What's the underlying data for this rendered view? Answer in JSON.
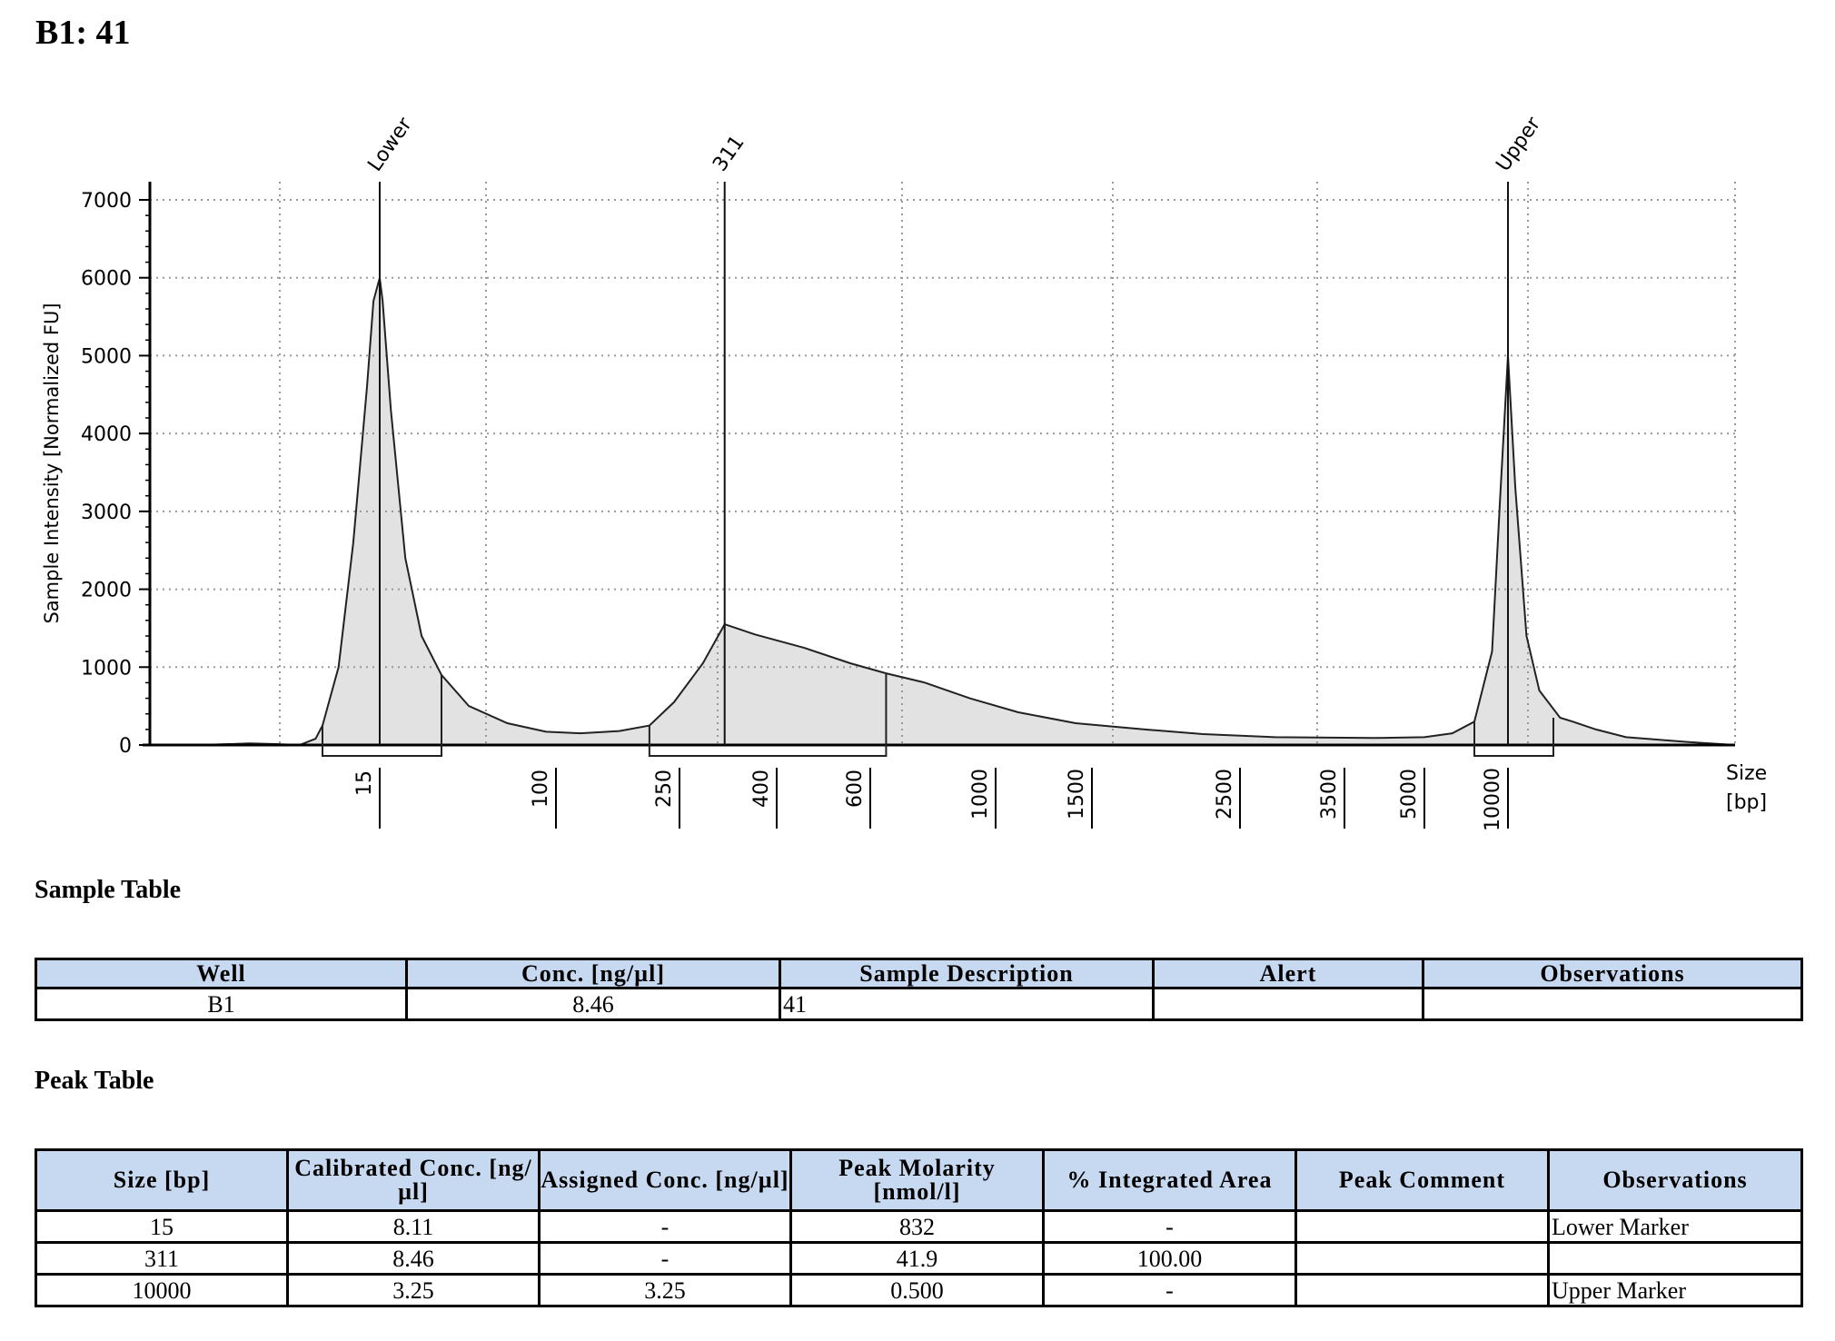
{
  "title": "B1: 41",
  "chart_data": {
    "type": "area",
    "ylabel": "Sample Intensity [Normalized FU]",
    "xlabel": "Size\n[bp]",
    "xlabel_lines": [
      "Size",
      "[bp]"
    ],
    "yticks": [
      0,
      1000,
      2000,
      3000,
      4000,
      5000,
      6000,
      7000
    ],
    "ylim": [
      0,
      7300
    ],
    "xticks": [
      15,
      100,
      250,
      400,
      600,
      1000,
      1500,
      2500,
      3500,
      5000,
      10000
    ],
    "x_scale": "ladder",
    "grid": true,
    "peak_labels": [
      {
        "label": "Lower",
        "size": 15
      },
      {
        "label": "311",
        "size": 311
      },
      {
        "label": "Upper",
        "size": 10000
      }
    ],
    "regions": [
      {
        "from": 11,
        "to": 30
      },
      {
        "from": 200,
        "to": 640
      },
      {
        "from": 8000,
        "to": 13500
      }
    ],
    "trace": [
      [
        2,
        0
      ],
      [
        4,
        20
      ],
      [
        6,
        10
      ],
      [
        8,
        0
      ],
      [
        10,
        80
      ],
      [
        11,
        250
      ],
      [
        12,
        1000
      ],
      [
        13,
        2600
      ],
      [
        14,
        4600
      ],
      [
        14.5,
        5700
      ],
      [
        15,
        6000
      ],
      [
        15.5,
        5700
      ],
      [
        17,
        4300
      ],
      [
        20,
        2400
      ],
      [
        24,
        1400
      ],
      [
        30,
        900
      ],
      [
        40,
        500
      ],
      [
        60,
        280
      ],
      [
        90,
        170
      ],
      [
        120,
        150
      ],
      [
        160,
        180
      ],
      [
        200,
        250
      ],
      [
        240,
        550
      ],
      [
        280,
        1050
      ],
      [
        311,
        1550
      ],
      [
        360,
        1420
      ],
      [
        450,
        1250
      ],
      [
        550,
        1050
      ],
      [
        640,
        920
      ],
      [
        750,
        800
      ],
      [
        900,
        600
      ],
      [
        1100,
        420
      ],
      [
        1400,
        280
      ],
      [
        1800,
        200
      ],
      [
        2200,
        140
      ],
      [
        2800,
        100
      ],
      [
        4000,
        90
      ],
      [
        5000,
        100
      ],
      [
        6500,
        150
      ],
      [
        8000,
        300
      ],
      [
        9000,
        1200
      ],
      [
        9500,
        3200
      ],
      [
        10000,
        5000
      ],
      [
        10500,
        3300
      ],
      [
        11300,
        1400
      ],
      [
        12300,
        700
      ],
      [
        14000,
        350
      ],
      [
        15000,
        300
      ],
      [
        17000,
        200
      ],
      [
        20000,
        100
      ],
      [
        26000,
        40
      ],
      [
        32000,
        0
      ]
    ]
  },
  "sample_table": {
    "heading": "Sample Table",
    "headers": [
      "Well",
      "Conc. [ng/µl]",
      "Sample Description",
      "Alert",
      "Observations"
    ],
    "rows": [
      [
        "B1",
        "8.46",
        "41",
        "",
        ""
      ]
    ]
  },
  "peak_table": {
    "heading": "Peak Table",
    "headers": [
      "Size [bp]",
      "Calibrated Conc. [ng/µl]",
      "Assigned Conc. [ng/µl]",
      "Peak Molarity [nmol/l]",
      "% Integrated Area",
      "Peak Comment",
      "Observations"
    ],
    "rows": [
      [
        "15",
        "8.11",
        "-",
        "832",
        "-",
        "",
        "Lower Marker"
      ],
      [
        "311",
        "8.46",
        "-",
        "41.9",
        "100.00",
        "",
        ""
      ],
      [
        "10000",
        "3.25",
        "3.25",
        "0.500",
        "-",
        "",
        "Upper Marker"
      ]
    ]
  }
}
